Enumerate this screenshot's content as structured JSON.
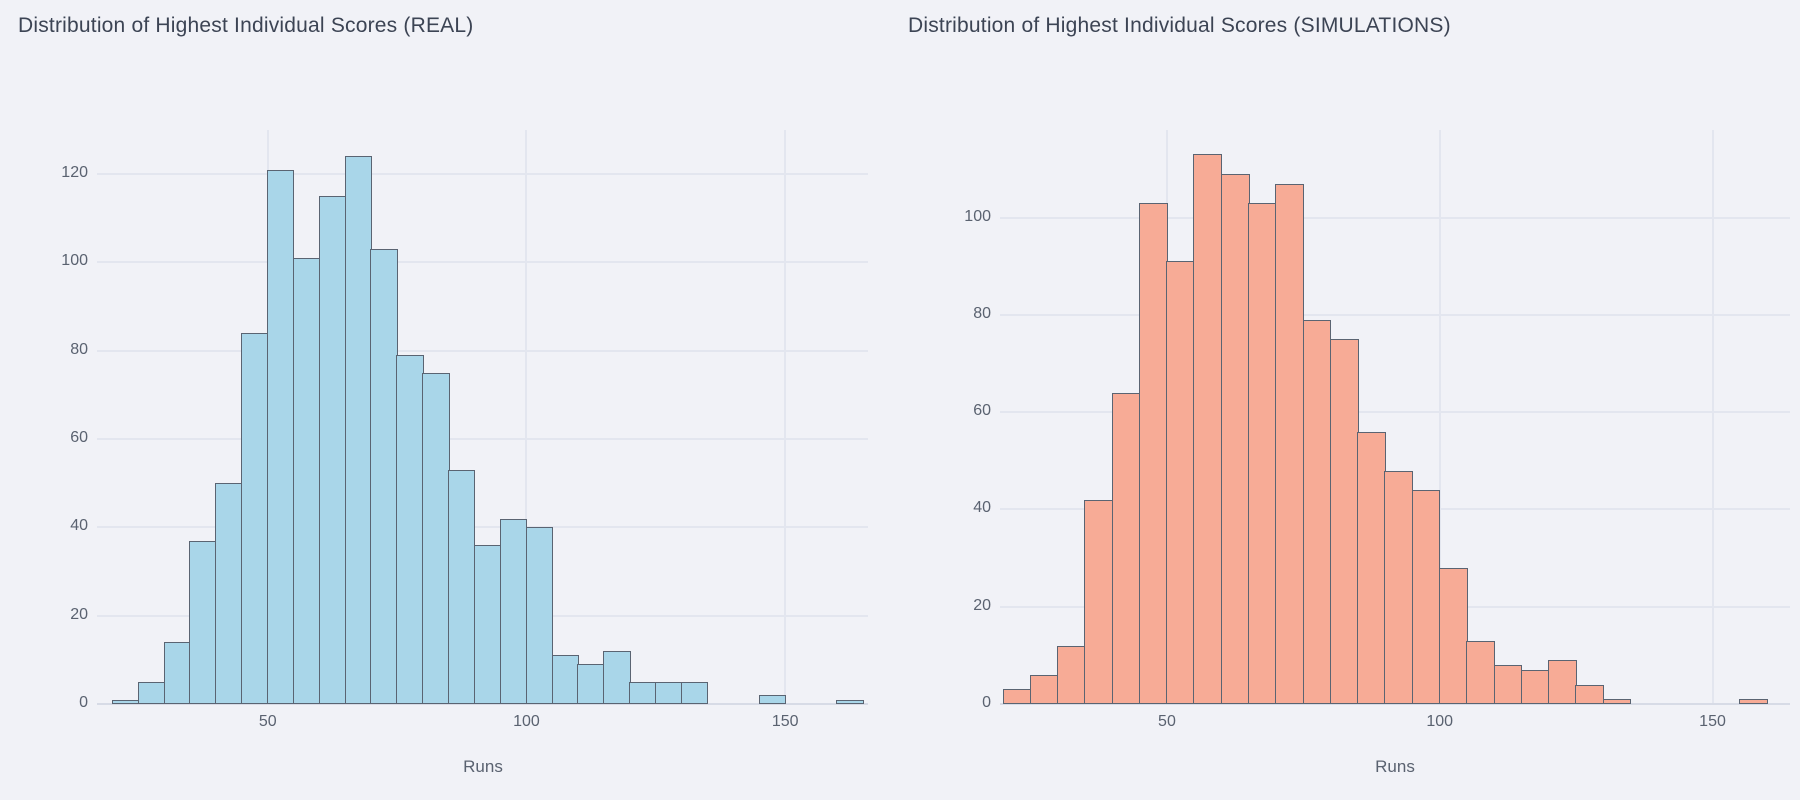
{
  "page": {
    "background": "#f1f2f7",
    "gridline_color": "#e3e6ef",
    "baseline_color": "#d7dbe6",
    "title_color": "#3c4454",
    "tick_color": "#5a6270"
  },
  "chart_data": [
    {
      "type": "bar",
      "subtype": "histogram",
      "title": "Distribution of Highest Individual Scores (REAL)",
      "xlabel": "Runs",
      "ylabel": "",
      "legend": "none",
      "grid": "on",
      "bar_fill": "#a9d6e9",
      "bar_border": "#5a6472",
      "bin_start": 20,
      "bin_width": 5,
      "bin_edges": [
        20,
        25,
        30,
        35,
        40,
        45,
        50,
        55,
        60,
        65,
        70,
        75,
        80,
        85,
        90,
        95,
        100,
        105,
        110,
        115,
        120,
        125,
        130,
        135,
        140,
        145,
        150,
        155,
        160,
        165
      ],
      "values": [
        1,
        5,
        14,
        37,
        50,
        84,
        121,
        101,
        115,
        124,
        103,
        79,
        75,
        53,
        36,
        42,
        40,
        11,
        9,
        12,
        5,
        5,
        5,
        0,
        0,
        2,
        0,
        0,
        1
      ],
      "x_ticks": [
        50,
        100,
        150
      ],
      "y_ticks": [
        0,
        20,
        40,
        60,
        80,
        100,
        120
      ],
      "x_range": [
        17,
        166
      ],
      "y_range": [
        0,
        130
      ]
    },
    {
      "type": "bar",
      "subtype": "histogram",
      "title": "Distribution of Highest Individual Scores (SIMULATIONS)",
      "xlabel": "Runs",
      "ylabel": "",
      "legend": "none",
      "grid": "on",
      "bar_fill": "#f7ab96",
      "bar_border": "#5a6472",
      "bin_start": 20,
      "bin_width": 5,
      "bin_edges": [
        20,
        25,
        30,
        35,
        40,
        45,
        50,
        55,
        60,
        65,
        70,
        75,
        80,
        85,
        90,
        95,
        100,
        105,
        110,
        115,
        120,
        125,
        130,
        135,
        140,
        145,
        150,
        155,
        160
      ],
      "values": [
        3,
        6,
        12,
        42,
        64,
        103,
        91,
        113,
        109,
        103,
        107,
        79,
        75,
        56,
        48,
        44,
        28,
        13,
        8,
        7,
        9,
        4,
        1,
        0,
        0,
        0,
        0,
        1
      ],
      "x_ticks": [
        50,
        100,
        150
      ],
      "y_ticks": [
        0,
        20,
        40,
        60,
        80,
        100
      ],
      "x_range": [
        19.4,
        164.2
      ],
      "y_range": [
        0,
        118
      ]
    }
  ]
}
